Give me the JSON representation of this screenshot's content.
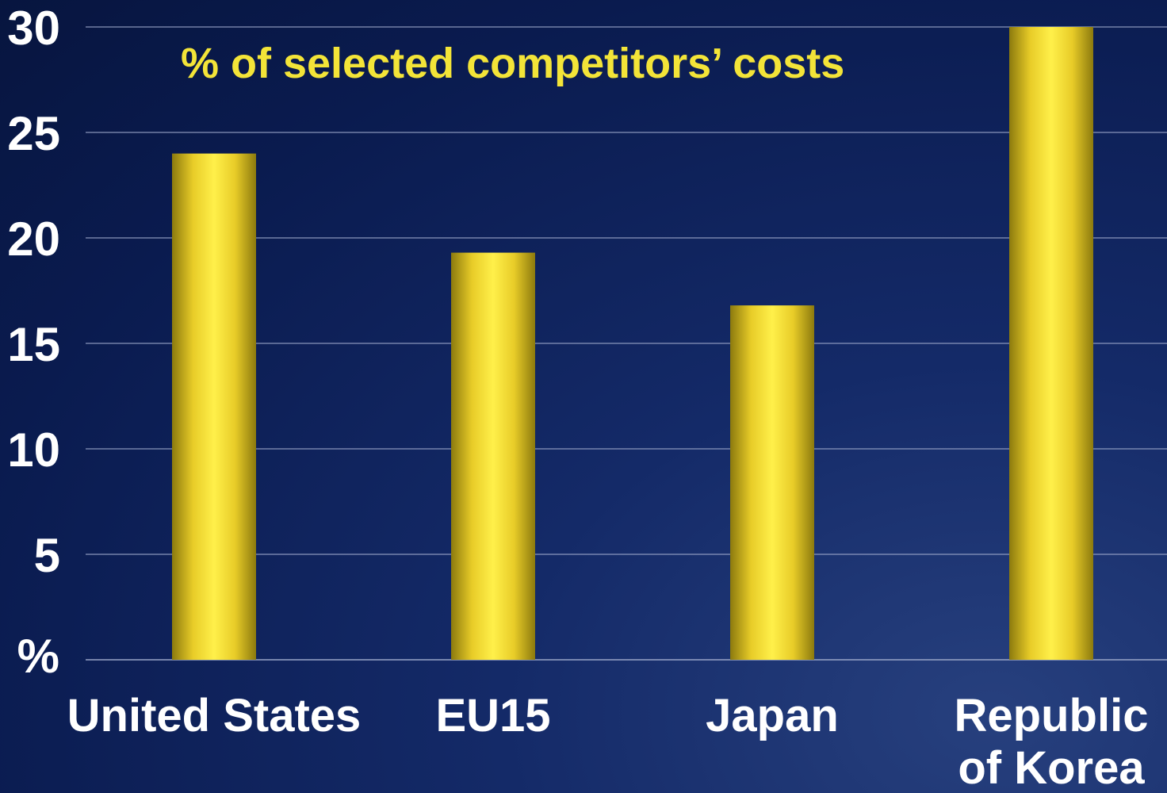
{
  "chart_data": {
    "type": "bar",
    "title": "% of selected competitors’ costs",
    "ylabel": "%",
    "categories": [
      "United States",
      "EU15",
      "Japan",
      "Republic of Korea"
    ],
    "category_lines": [
      [
        "United States"
      ],
      [
        "EU15"
      ],
      [
        "Japan"
      ],
      [
        "Republic",
        "of Korea"
      ]
    ],
    "values": [
      24,
      19.3,
      16.8,
      30
    ],
    "ylim": [
      0,
      30
    ],
    "yticks": [
      5,
      10,
      15,
      20,
      25,
      30
    ],
    "ytick_labels": [
      "5",
      "10",
      "15",
      "20",
      "25",
      "30"
    ],
    "grid": true,
    "colors": {
      "bar_edge": "#8c7a0e",
      "bar_mid": "#fff04a",
      "bar_body": "#e8cc28",
      "grid": "#9aa6c8",
      "title": "#f3e438",
      "text": "#ffffff"
    }
  }
}
